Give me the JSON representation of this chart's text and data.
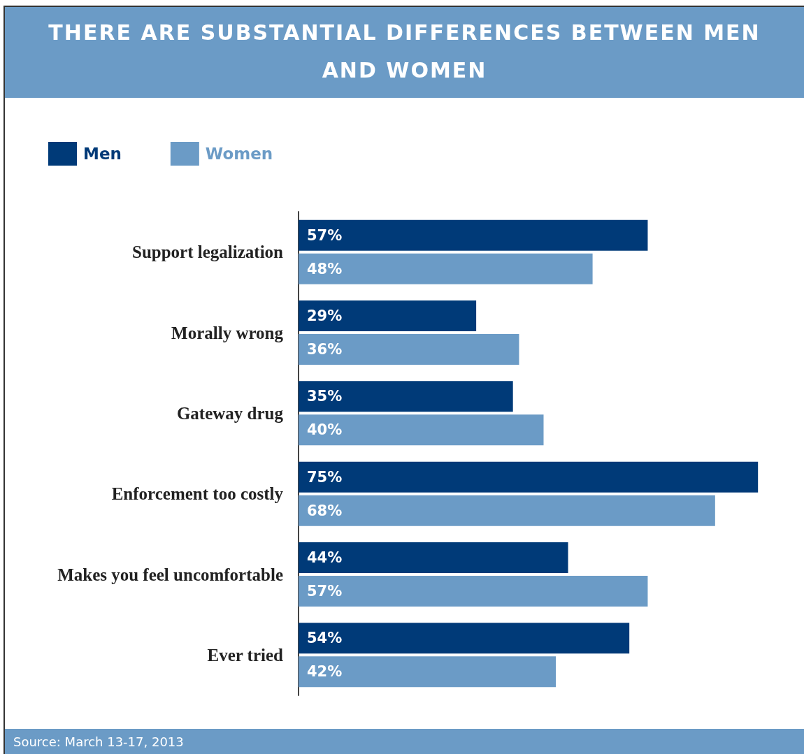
{
  "chart_data": {
    "type": "bar",
    "orientation": "horizontal",
    "title": "THERE ARE SUBSTANTIAL DIFFERENCES BETWEEN MEN AND WOMEN",
    "categories": [
      "Support legalization",
      "Morally wrong",
      "Gateway drug",
      "Enforcement too costly",
      "Makes you feel uncomfortable",
      "Ever tried"
    ],
    "series": [
      {
        "name": "Men",
        "color": "#003a78",
        "values": [
          57,
          29,
          35,
          75,
          44,
          54
        ],
        "value_labels": [
          "57%",
          "29%",
          "35%",
          "75%",
          "44%",
          "54%"
        ]
      },
      {
        "name": "Women",
        "color": "#6b9bc6",
        "values": [
          48,
          36,
          40,
          68,
          57,
          42
        ],
        "value_labels": [
          "48%",
          "36%",
          "40%",
          "68%",
          "57%",
          "42%"
        ]
      }
    ],
    "legend": "top left",
    "annotations": [
      "Source: March 13-17, 2013"
    ]
  }
}
